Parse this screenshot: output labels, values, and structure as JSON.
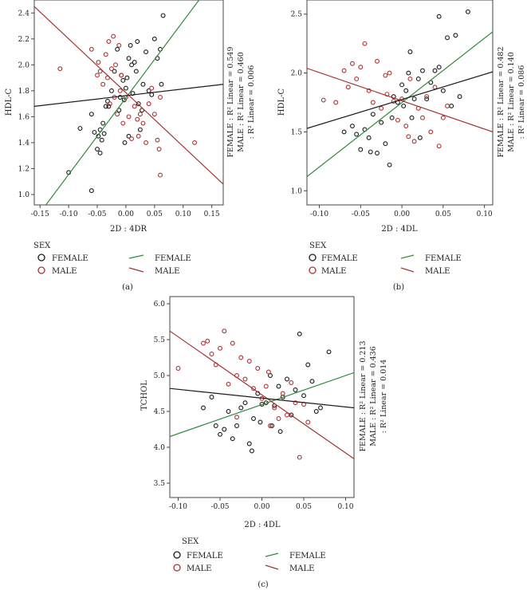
{
  "figure": {
    "captions": [
      "(a)",
      "(b)",
      "(c)"
    ]
  },
  "colors": {
    "female": "#1a1a1a",
    "male": "#b03030",
    "female_fit": "#2e8b3a",
    "male_fit": "#a83232",
    "total_fit": "#1a1a1a"
  },
  "chart_data": [
    {
      "id": "a",
      "type": "scatter",
      "caption": "(a)",
      "xlabel": "2D : 4DR",
      "ylabel": "HDL-C",
      "xlim": [
        -0.16,
        0.17
      ],
      "ylim": [
        0.92,
        2.5
      ],
      "xticks": [
        -0.15,
        -0.1,
        -0.05,
        0.0,
        0.05,
        0.1,
        0.15
      ],
      "xtick_labels": [
        "-0.15",
        "-0.10",
        "-0.05",
        "0.00",
        "0.05",
        "0.10",
        "0.15"
      ],
      "yticks": [
        1.0,
        1.2,
        1.4,
        1.6,
        1.8,
        2.0,
        2.2,
        2.4
      ],
      "ytick_labels": [
        "1.0",
        "1.2",
        "1.4",
        "1.6",
        "1.8",
        "2.0",
        "2.2",
        "2.4"
      ],
      "stats": [
        {
          "label": "FEMALE : R² Linear = 0.549"
        },
        {
          "label": "MALE : R² Linear = 0.460"
        },
        {
          "label": ": R² Linear = 0.006"
        }
      ],
      "legend": {
        "title": "SEX",
        "marker_entries": [
          "FEMALE",
          "MALE"
        ],
        "line_entries": [
          "FEMALE",
          "MALE"
        ]
      },
      "fit_lines": [
        {
          "name": "FEMALE",
          "x1": -0.16,
          "y1": 0.8,
          "x2": 0.17,
          "y2": 2.75
        },
        {
          "name": "MALE",
          "x1": -0.16,
          "y1": 2.45,
          "x2": 0.17,
          "y2": 1.08
        },
        {
          "name": "TOTAL",
          "x1": -0.16,
          "y1": 1.68,
          "x2": 0.17,
          "y2": 1.85
        }
      ],
      "series": [
        {
          "name": "FEMALE",
          "points": [
            [
              -0.1,
              1.17
            ],
            [
              -0.08,
              1.51
            ],
            [
              -0.06,
              1.03
            ],
            [
              -0.055,
              1.48
            ],
            [
              -0.05,
              1.35
            ],
            [
              -0.048,
              1.45
            ],
            [
              -0.045,
              1.5
            ],
            [
              -0.045,
              1.32
            ],
            [
              -0.04,
              1.55
            ],
            [
              -0.042,
              1.42
            ],
            [
              -0.038,
              1.47
            ],
            [
              -0.035,
              1.68
            ],
            [
              -0.032,
              1.72
            ],
            [
              -0.03,
              1.68
            ],
            [
              -0.025,
              1.8
            ],
            [
              -0.02,
              1.95
            ],
            [
              -0.015,
              2.12
            ],
            [
              -0.012,
              1.65
            ],
            [
              -0.01,
              1.75
            ],
            [
              -0.008,
              1.92
            ],
            [
              -0.005,
              1.88
            ],
            [
              -0.003,
              1.73
            ],
            [
              0.0,
              1.82
            ],
            [
              0.002,
              1.9
            ],
            [
              0.005,
              2.05
            ],
            [
              0.008,
              2.15
            ],
            [
              0.01,
              2.0
            ],
            [
              0.012,
              1.78
            ],
            [
              0.015,
              2.02
            ],
            [
              0.018,
              1.95
            ],
            [
              0.02,
              2.18
            ],
            [
              0.022,
              1.7
            ],
            [
              0.025,
              1.5
            ],
            [
              0.028,
              1.65
            ],
            [
              0.03,
              1.85
            ],
            [
              0.035,
              2.1
            ],
            [
              0.04,
              1.8
            ],
            [
              0.045,
              1.77
            ],
            [
              0.05,
              2.2
            ],
            [
              0.055,
              2.05
            ],
            [
              0.06,
              2.12
            ],
            [
              0.062,
              1.85
            ],
            [
              0.065,
              2.38
            ],
            [
              -0.06,
              1.62
            ],
            [
              -0.002,
              1.4
            ],
            [
              0.005,
              1.45
            ]
          ]
        },
        {
          "name": "MALE",
          "points": [
            [
              -0.115,
              1.97
            ],
            [
              -0.06,
              2.12
            ],
            [
              -0.05,
              1.92
            ],
            [
              -0.048,
              2.02
            ],
            [
              -0.045,
              1.95
            ],
            [
              -0.04,
              1.85
            ],
            [
              -0.035,
              2.08
            ],
            [
              -0.032,
              1.9
            ],
            [
              -0.03,
              2.18
            ],
            [
              -0.028,
              1.7
            ],
            [
              -0.025,
              1.97
            ],
            [
              -0.022,
              2.22
            ],
            [
              -0.02,
              1.75
            ],
            [
              -0.018,
              2.0
            ],
            [
              -0.015,
              1.62
            ],
            [
              -0.012,
              2.15
            ],
            [
              -0.01,
              1.8
            ],
            [
              -0.005,
              1.55
            ],
            [
              0.0,
              1.75
            ],
            [
              0.005,
              1.6
            ],
            [
              0.01,
              1.43
            ],
            [
              0.015,
              1.68
            ],
            [
              0.02,
              1.58
            ],
            [
              0.022,
              1.45
            ],
            [
              0.025,
              1.62
            ],
            [
              0.03,
              1.55
            ],
            [
              0.035,
              1.4
            ],
            [
              0.04,
              1.7
            ],
            [
              0.045,
              1.82
            ],
            [
              0.05,
              1.62
            ],
            [
              0.055,
              1.42
            ],
            [
              0.058,
              1.35
            ],
            [
              0.06,
              1.15
            ],
            [
              0.06,
              1.75
            ],
            [
              0.12,
              1.4
            ],
            [
              -0.008,
              1.92
            ]
          ]
        }
      ]
    },
    {
      "id": "b",
      "type": "scatter",
      "caption": "(b)",
      "xlabel": "2D : 4DL",
      "ylabel": "HDL-C",
      "xlim": [
        -0.115,
        0.11
      ],
      "ylim": [
        0.88,
        2.62
      ],
      "xticks": [
        -0.1,
        -0.05,
        0.0,
        0.05,
        0.1
      ],
      "xtick_labels": [
        "-0.10",
        "-0.05",
        "0.00",
        "0.05",
        "0.10"
      ],
      "yticks": [
        1.0,
        1.5,
        2.0,
        2.5
      ],
      "ytick_labels": [
        "1.0",
        "1.5",
        "2.0",
        "2.5"
      ],
      "stats": [
        {
          "label": "FEMALE : R² Linear = 0.482"
        },
        {
          "label": "MALE : R² Linear = 0.140"
        },
        {
          "label": ": R² Linear = 0.086"
        }
      ],
      "legend": {
        "title": "SEX",
        "marker_entries": [
          "FEMALE",
          "MALE"
        ],
        "line_entries": [
          "FEMALE",
          "MALE"
        ]
      },
      "fit_lines": [
        {
          "name": "FEMALE",
          "x1": -0.115,
          "y1": 1.12,
          "x2": 0.11,
          "y2": 2.35
        },
        {
          "name": "MALE",
          "x1": -0.115,
          "y1": 2.04,
          "x2": 0.11,
          "y2": 1.5
        },
        {
          "name": "TOTAL",
          "x1": -0.115,
          "y1": 1.53,
          "x2": 0.11,
          "y2": 2.01
        }
      ],
      "series": [
        {
          "name": "FEMALE",
          "points": [
            [
              -0.07,
              1.5
            ],
            [
              -0.06,
              1.55
            ],
            [
              -0.055,
              1.48
            ],
            [
              -0.05,
              1.35
            ],
            [
              -0.045,
              1.52
            ],
            [
              -0.04,
              1.45
            ],
            [
              -0.035,
              1.65
            ],
            [
              -0.03,
              1.32
            ],
            [
              -0.025,
              1.58
            ],
            [
              -0.02,
              1.4
            ],
            [
              -0.015,
              1.22
            ],
            [
              -0.012,
              1.62
            ],
            [
              -0.01,
              1.8
            ],
            [
              -0.005,
              1.75
            ],
            [
              0.0,
              1.9
            ],
            [
              0.002,
              1.72
            ],
            [
              0.005,
              1.85
            ],
            [
              0.008,
              2.0
            ],
            [
              0.01,
              2.18
            ],
            [
              0.015,
              1.78
            ],
            [
              0.02,
              1.95
            ],
            [
              0.025,
              2.02
            ],
            [
              0.03,
              1.78
            ],
            [
              0.035,
              1.92
            ],
            [
              0.04,
              2.02
            ],
            [
              0.045,
              2.05
            ],
            [
              0.045,
              2.48
            ],
            [
              0.05,
              1.85
            ],
            [
              0.055,
              2.3
            ],
            [
              0.06,
              1.72
            ],
            [
              0.065,
              2.32
            ],
            [
              0.07,
              1.8
            ],
            [
              0.08,
              2.52
            ],
            [
              -0.038,
              1.33
            ],
            [
              0.012,
              1.62
            ],
            [
              0.022,
              1.45
            ]
          ]
        },
        {
          "name": "MALE",
          "points": [
            [
              -0.095,
              1.77
            ],
            [
              -0.07,
              2.02
            ],
            [
              -0.065,
              1.88
            ],
            [
              -0.06,
              2.08
            ],
            [
              -0.055,
              1.95
            ],
            [
              -0.05,
              2.05
            ],
            [
              -0.045,
              2.25
            ],
            [
              -0.04,
              1.85
            ],
            [
              -0.035,
              1.75
            ],
            [
              -0.03,
              2.1
            ],
            [
              -0.025,
              1.7
            ],
            [
              -0.02,
              1.98
            ],
            [
              -0.018,
              1.82
            ],
            [
              -0.015,
              2.0
            ],
            [
              -0.01,
              1.76
            ],
            [
              -0.005,
              1.6
            ],
            [
              0.0,
              1.78
            ],
            [
              0.005,
              1.55
            ],
            [
              0.01,
              1.95
            ],
            [
              0.015,
              1.42
            ],
            [
              0.02,
              1.7
            ],
            [
              0.025,
              1.62
            ],
            [
              0.03,
              1.8
            ],
            [
              0.035,
              1.5
            ],
            [
              0.04,
              1.88
            ],
            [
              0.045,
              1.38
            ],
            [
              0.05,
              1.62
            ],
            [
              0.055,
              1.72
            ],
            [
              -0.08,
              1.75
            ],
            [
              0.008,
              1.46
            ]
          ]
        }
      ]
    },
    {
      "id": "c",
      "type": "scatter",
      "caption": "(c)",
      "xlabel": "2D : 4DL",
      "ylabel": "TCHOL",
      "xlim": [
        -0.11,
        0.11
      ],
      "ylim": [
        3.3,
        6.1
      ],
      "xticks": [
        -0.1,
        -0.05,
        0.0,
        0.05,
        0.1
      ],
      "xtick_labels": [
        "-0.10",
        "-0.05",
        "0.00",
        "0.05",
        "0.10"
      ],
      "yticks": [
        3.5,
        4.0,
        4.5,
        5.0,
        5.5,
        6.0
      ],
      "ytick_labels": [
        "3.5",
        "4.0",
        "4.5",
        "5.0",
        "5.5",
        "6.0"
      ],
      "stats": [
        {
          "label": "FEMALE : R² Linear = 0.213"
        },
        {
          "label": "MALE : R² Linear = 0.436"
        },
        {
          "label": ": R² Linear = 0.014"
        }
      ],
      "legend": {
        "title": "SEX",
        "marker_entries": [
          "FEMALE",
          "MALE"
        ],
        "line_entries": [
          "FEMALE",
          "MALE"
        ]
      },
      "fit_lines": [
        {
          "name": "FEMALE",
          "x1": -0.11,
          "y1": 4.15,
          "x2": 0.11,
          "y2": 5.04
        },
        {
          "name": "MALE",
          "x1": -0.11,
          "y1": 5.62,
          "x2": 0.11,
          "y2": 3.84
        },
        {
          "name": "TOTAL",
          "x1": -0.11,
          "y1": 4.82,
          "x2": 0.11,
          "y2": 4.55
        }
      ],
      "series": [
        {
          "name": "FEMALE",
          "points": [
            [
              -0.07,
              4.55
            ],
            [
              -0.06,
              4.7
            ],
            [
              -0.055,
              4.3
            ],
            [
              -0.05,
              4.18
            ],
            [
              -0.045,
              4.25
            ],
            [
              -0.04,
              4.5
            ],
            [
              -0.035,
              4.12
            ],
            [
              -0.03,
              4.3
            ],
            [
              -0.025,
              4.55
            ],
            [
              -0.02,
              4.62
            ],
            [
              -0.015,
              4.05
            ],
            [
              -0.012,
              3.95
            ],
            [
              -0.01,
              4.4
            ],
            [
              -0.005,
              4.75
            ],
            [
              0.0,
              4.6
            ],
            [
              0.005,
              4.62
            ],
            [
              0.01,
              5.0
            ],
            [
              0.015,
              4.58
            ],
            [
              0.02,
              4.85
            ],
            [
              0.025,
              4.7
            ],
            [
              0.03,
              4.95
            ],
            [
              0.035,
              4.45
            ],
            [
              0.04,
              4.8
            ],
            [
              0.045,
              5.58
            ],
            [
              0.05,
              4.72
            ],
            [
              0.055,
              5.15
            ],
            [
              0.06,
              4.92
            ],
            [
              0.065,
              4.5
            ],
            [
              0.07,
              4.55
            ],
            [
              0.08,
              5.33
            ],
            [
              -0.002,
              4.35
            ],
            [
              0.012,
              4.3
            ],
            [
              0.022,
              4.22
            ]
          ]
        },
        {
          "name": "MALE",
          "points": [
            [
              -0.1,
              5.1
            ],
            [
              -0.07,
              5.45
            ],
            [
              -0.065,
              5.48
            ],
            [
              -0.06,
              5.3
            ],
            [
              -0.055,
              5.15
            ],
            [
              -0.05,
              5.38
            ],
            [
              -0.045,
              5.62
            ],
            [
              -0.04,
              4.88
            ],
            [
              -0.035,
              5.45
            ],
            [
              -0.03,
              5.0
            ],
            [
              -0.025,
              5.25
            ],
            [
              -0.02,
              4.95
            ],
            [
              -0.015,
              5.2
            ],
            [
              -0.01,
              4.82
            ],
            [
              -0.005,
              5.1
            ],
            [
              0.0,
              4.68
            ],
            [
              0.005,
              4.85
            ],
            [
              0.01,
              4.3
            ],
            [
              0.015,
              4.55
            ],
            [
              0.02,
              4.4
            ],
            [
              0.025,
              4.75
            ],
            [
              0.03,
              4.45
            ],
            [
              0.035,
              4.9
            ],
            [
              0.04,
              4.62
            ],
            [
              0.045,
              3.86
            ],
            [
              0.05,
              4.6
            ],
            [
              0.055,
              4.35
            ],
            [
              -0.03,
              4.42
            ],
            [
              0.008,
              5.05
            ]
          ]
        }
      ]
    }
  ]
}
